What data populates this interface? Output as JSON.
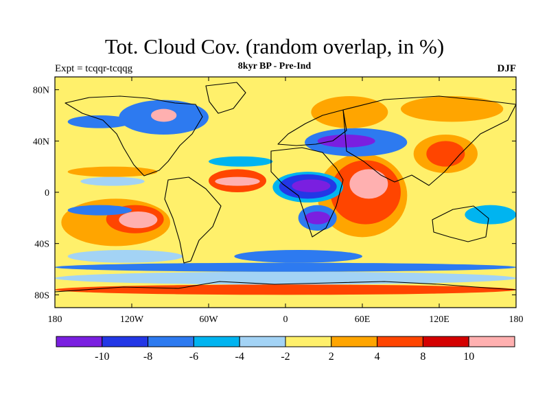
{
  "header": {
    "title": "Tot. Cloud Cov. (random overlap, in %)",
    "left_label": "Expt = tcqqr-tcqqg",
    "center_label": "8kyr BP - Pre-Ind",
    "right_label": "DJF"
  },
  "chart_data": {
    "type": "heatmap",
    "xlim": [
      -180,
      180
    ],
    "ylim": [
      -90,
      90
    ],
    "x_ticks": [
      {
        "value": -180,
        "label": "180"
      },
      {
        "value": -120,
        "label": "120W"
      },
      {
        "value": -60,
        "label": "60W"
      },
      {
        "value": 0,
        "label": "0"
      },
      {
        "value": 60,
        "label": "60E"
      },
      {
        "value": 120,
        "label": "120E"
      },
      {
        "value": 180,
        "label": "180"
      }
    ],
    "y_ticks": [
      {
        "value": 80,
        "label": "80N"
      },
      {
        "value": 40,
        "label": "40N"
      },
      {
        "value": 0,
        "label": "0"
      },
      {
        "value": -40,
        "label": "40S"
      },
      {
        "value": -80,
        "label": "80S"
      }
    ],
    "colorbar": {
      "colors": [
        "#7a1fe0",
        "#2337e6",
        "#2d7af0",
        "#00b4f0",
        "#a3d3f5",
        "#fff06b",
        "#ffa500",
        "#ff4500",
        "#d40000",
        "#ffb0b0"
      ],
      "boundaries": [
        "-10",
        "-8",
        "-6",
        "-4",
        "-2",
        "2",
        "4",
        "8",
        "10"
      ]
    },
    "regions": [
      {
        "lon": [
          -130,
          -100
        ],
        "lat": [
          -28,
          -15
        ],
        "level": 9
      },
      {
        "lon": [
          -140,
          -95
        ],
        "lat": [
          -32,
          -10
        ],
        "level": 7
      },
      {
        "lon": [
          -175,
          -90
        ],
        "lat": [
          -42,
          -5
        ],
        "level": 6
      },
      {
        "lon": [
          -170,
          -120
        ],
        "lat": [
          -18,
          -10
        ],
        "level": 2
      },
      {
        "lon": [
          -160,
          -110
        ],
        "lat": [
          5,
          12
        ],
        "level": 4
      },
      {
        "lon": [
          -170,
          -100
        ],
        "lat": [
          12,
          20
        ],
        "level": 6
      },
      {
        "lon": [
          -55,
          -20
        ],
        "lat": [
          5,
          12
        ],
        "level": 9
      },
      {
        "lon": [
          -60,
          -15
        ],
        "lat": [
          0,
          18
        ],
        "level": 7
      },
      {
        "lon": [
          -60,
          -10
        ],
        "lat": [
          20,
          28
        ],
        "level": 3
      },
      {
        "lon": [
          5,
          35
        ],
        "lat": [
          0,
          10
        ],
        "level": 0
      },
      {
        "lon": [
          -5,
          40
        ],
        "lat": [
          -5,
          14
        ],
        "level": 1
      },
      {
        "lon": [
          -10,
          45
        ],
        "lat": [
          -8,
          16
        ],
        "level": 3
      },
      {
        "lon": [
          15,
          35
        ],
        "lat": [
          -25,
          -15
        ],
        "level": 0
      },
      {
        "lon": [
          10,
          40
        ],
        "lat": [
          -30,
          -10
        ],
        "level": 2
      },
      {
        "lon": [
          50,
          80
        ],
        "lat": [
          -5,
          18
        ],
        "level": 9
      },
      {
        "lon": [
          35,
          90
        ],
        "lat": [
          -25,
          25
        ],
        "level": 7
      },
      {
        "lon": [
          25,
          95
        ],
        "lat": [
          -35,
          30
        ],
        "level": 6
      },
      {
        "lon": [
          25,
          70
        ],
        "lat": [
          35,
          45
        ],
        "level": 0
      },
      {
        "lon": [
          15,
          95
        ],
        "lat": [
          28,
          50
        ],
        "level": 2
      },
      {
        "lon": [
          110,
          140
        ],
        "lat": [
          20,
          40
        ],
        "level": 7
      },
      {
        "lon": [
          100,
          150
        ],
        "lat": [
          15,
          45
        ],
        "level": 6
      },
      {
        "lon": [
          -105,
          -85
        ],
        "lat": [
          55,
          65
        ],
        "level": 9
      },
      {
        "lon": [
          -130,
          -60
        ],
        "lat": [
          45,
          72
        ],
        "level": 2
      },
      {
        "lon": [
          -170,
          -120
        ],
        "lat": [
          50,
          60
        ],
        "level": 2
      },
      {
        "lon": [
          20,
          80
        ],
        "lat": [
          50,
          75
        ],
        "level": 6
      },
      {
        "lon": [
          90,
          170
        ],
        "lat": [
          55,
          75
        ],
        "level": 6
      },
      {
        "lon": [
          -180,
          180
        ],
        "lat": [
          -80,
          -72
        ],
        "level": 7
      },
      {
        "lon": [
          -180,
          180
        ],
        "lat": [
          -72,
          -62
        ],
        "level": 4
      },
      {
        "lon": [
          -180,
          180
        ],
        "lat": [
          -62,
          -55
        ],
        "level": 2
      },
      {
        "lon": [
          -170,
          -80
        ],
        "lat": [
          -55,
          -45
        ],
        "level": 4
      },
      {
        "lon": [
          -40,
          60
        ],
        "lat": [
          -55,
          -45
        ],
        "level": 2
      },
      {
        "lon": [
          140,
          180
        ],
        "lat": [
          -25,
          -10
        ],
        "level": 3
      }
    ]
  }
}
